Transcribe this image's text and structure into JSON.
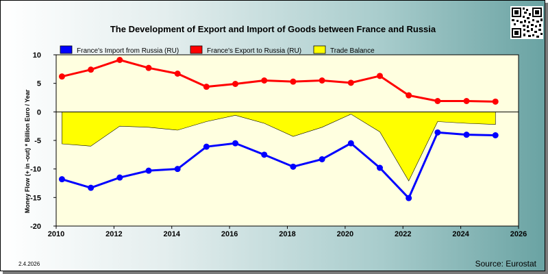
{
  "page": {
    "title": "The Development of Export and Import of Goods between France and Russia",
    "date": "2.4.2026",
    "source": "Source: Eurostat",
    "qr_icon": "qr-code-icon"
  },
  "chart_data": {
    "type": "line",
    "title": "The Development of Export and Import of Goods between France and Russia",
    "ylabel": "Money Flow (+ in -out) * Billion Euro / Year",
    "xlabel": "",
    "xlim": [
      2010,
      2026
    ],
    "ylim": [
      -20,
      10
    ],
    "xticks": [
      2010,
      2012,
      2014,
      2016,
      2018,
      2020,
      2022,
      2024,
      2026
    ],
    "yticks": [
      10,
      5,
      0,
      -5,
      -10,
      -15,
      -20
    ],
    "grid": false,
    "legend_position": "top",
    "x": [
      2010.2,
      2011.2,
      2012.2,
      2013.2,
      2014.2,
      2015.2,
      2016.2,
      2017.2,
      2018.2,
      2019.2,
      2020.2,
      2021.2,
      2022.2,
      2023.2,
      2024.2,
      2025.2
    ],
    "series": [
      {
        "name": "France's Import from Russia (RU)",
        "kind": "line",
        "color": "#0000ff",
        "values": [
          -11.8,
          -13.3,
          -11.5,
          -10.3,
          -10.0,
          -6.1,
          -5.5,
          -7.5,
          -9.6,
          -8.3,
          -5.5,
          -9.8,
          -15.1,
          -3.6,
          -4.0,
          -4.1
        ]
      },
      {
        "name": "France's Export to Russia (RU)",
        "kind": "line",
        "color": "#ff0000",
        "values": [
          6.2,
          7.4,
          9.1,
          7.7,
          6.7,
          4.4,
          4.9,
          5.5,
          5.3,
          5.5,
          5.1,
          6.3,
          2.9,
          1.9,
          1.9,
          1.8
        ]
      },
      {
        "name": "Trade Balance",
        "kind": "area",
        "color": "#ffff00",
        "values": [
          -5.6,
          -6.0,
          -2.5,
          -2.7,
          -3.2,
          -1.7,
          -0.6,
          -2.0,
          -4.3,
          -2.7,
          -0.4,
          -3.5,
          -12.1,
          -1.7,
          -2.0,
          -2.2
        ]
      }
    ]
  }
}
